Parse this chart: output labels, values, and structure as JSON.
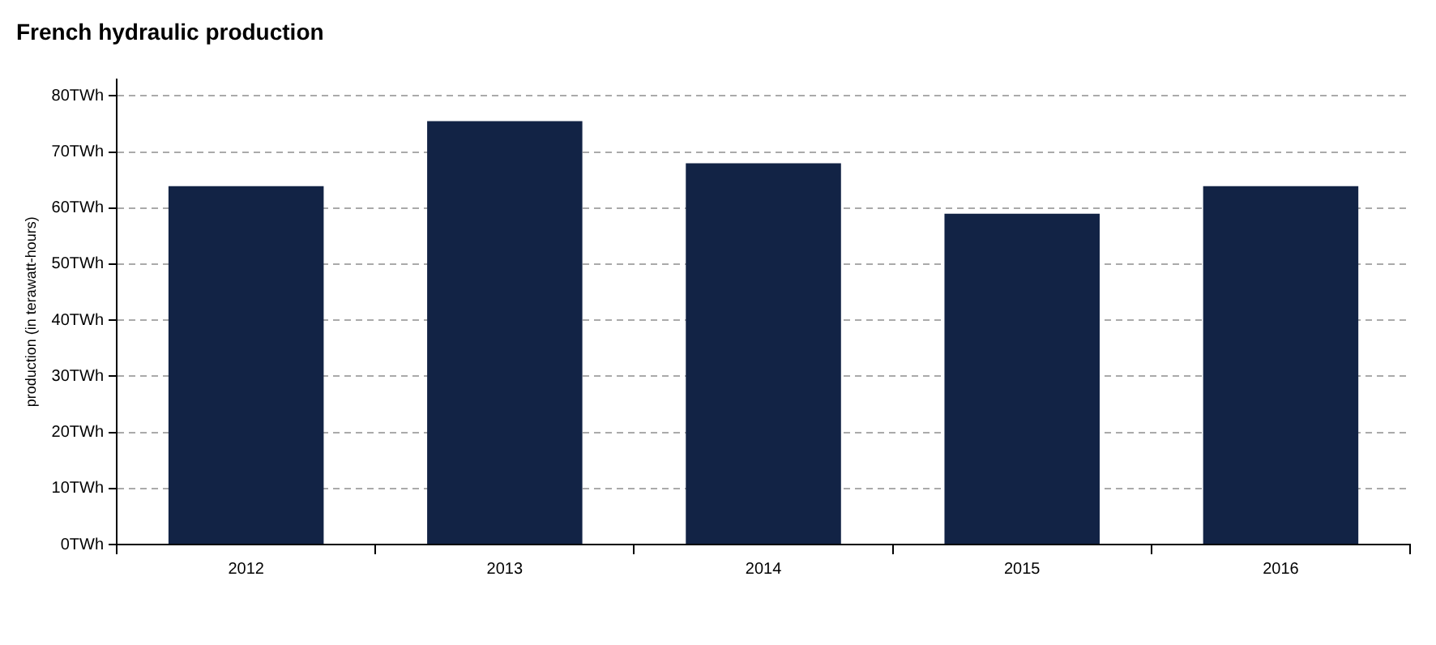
{
  "chart_data": {
    "type": "bar",
    "title": "French hydraulic production",
    "ylabel": "production (in terawatt-hours)",
    "categories": [
      "2012",
      "2013",
      "2014",
      "2015",
      "2016"
    ],
    "values": [
      63.9,
      75.5,
      68.0,
      59.0,
      63.9
    ],
    "color": "#122345",
    "ylim": [
      0,
      83
    ],
    "yticks": [
      {
        "value": 0,
        "label": "0TWh"
      },
      {
        "value": 10,
        "label": "10TWh"
      },
      {
        "value": 20,
        "label": "20TWh"
      },
      {
        "value": 30,
        "label": "30TWh"
      },
      {
        "value": 40,
        "label": "40TWh"
      },
      {
        "value": 50,
        "label": "50TWh"
      },
      {
        "value": 60,
        "label": "60TWh"
      },
      {
        "value": 70,
        "label": "70TWh"
      },
      {
        "value": 80,
        "label": "80TWh"
      }
    ],
    "grid": "y",
    "legend": false
  }
}
